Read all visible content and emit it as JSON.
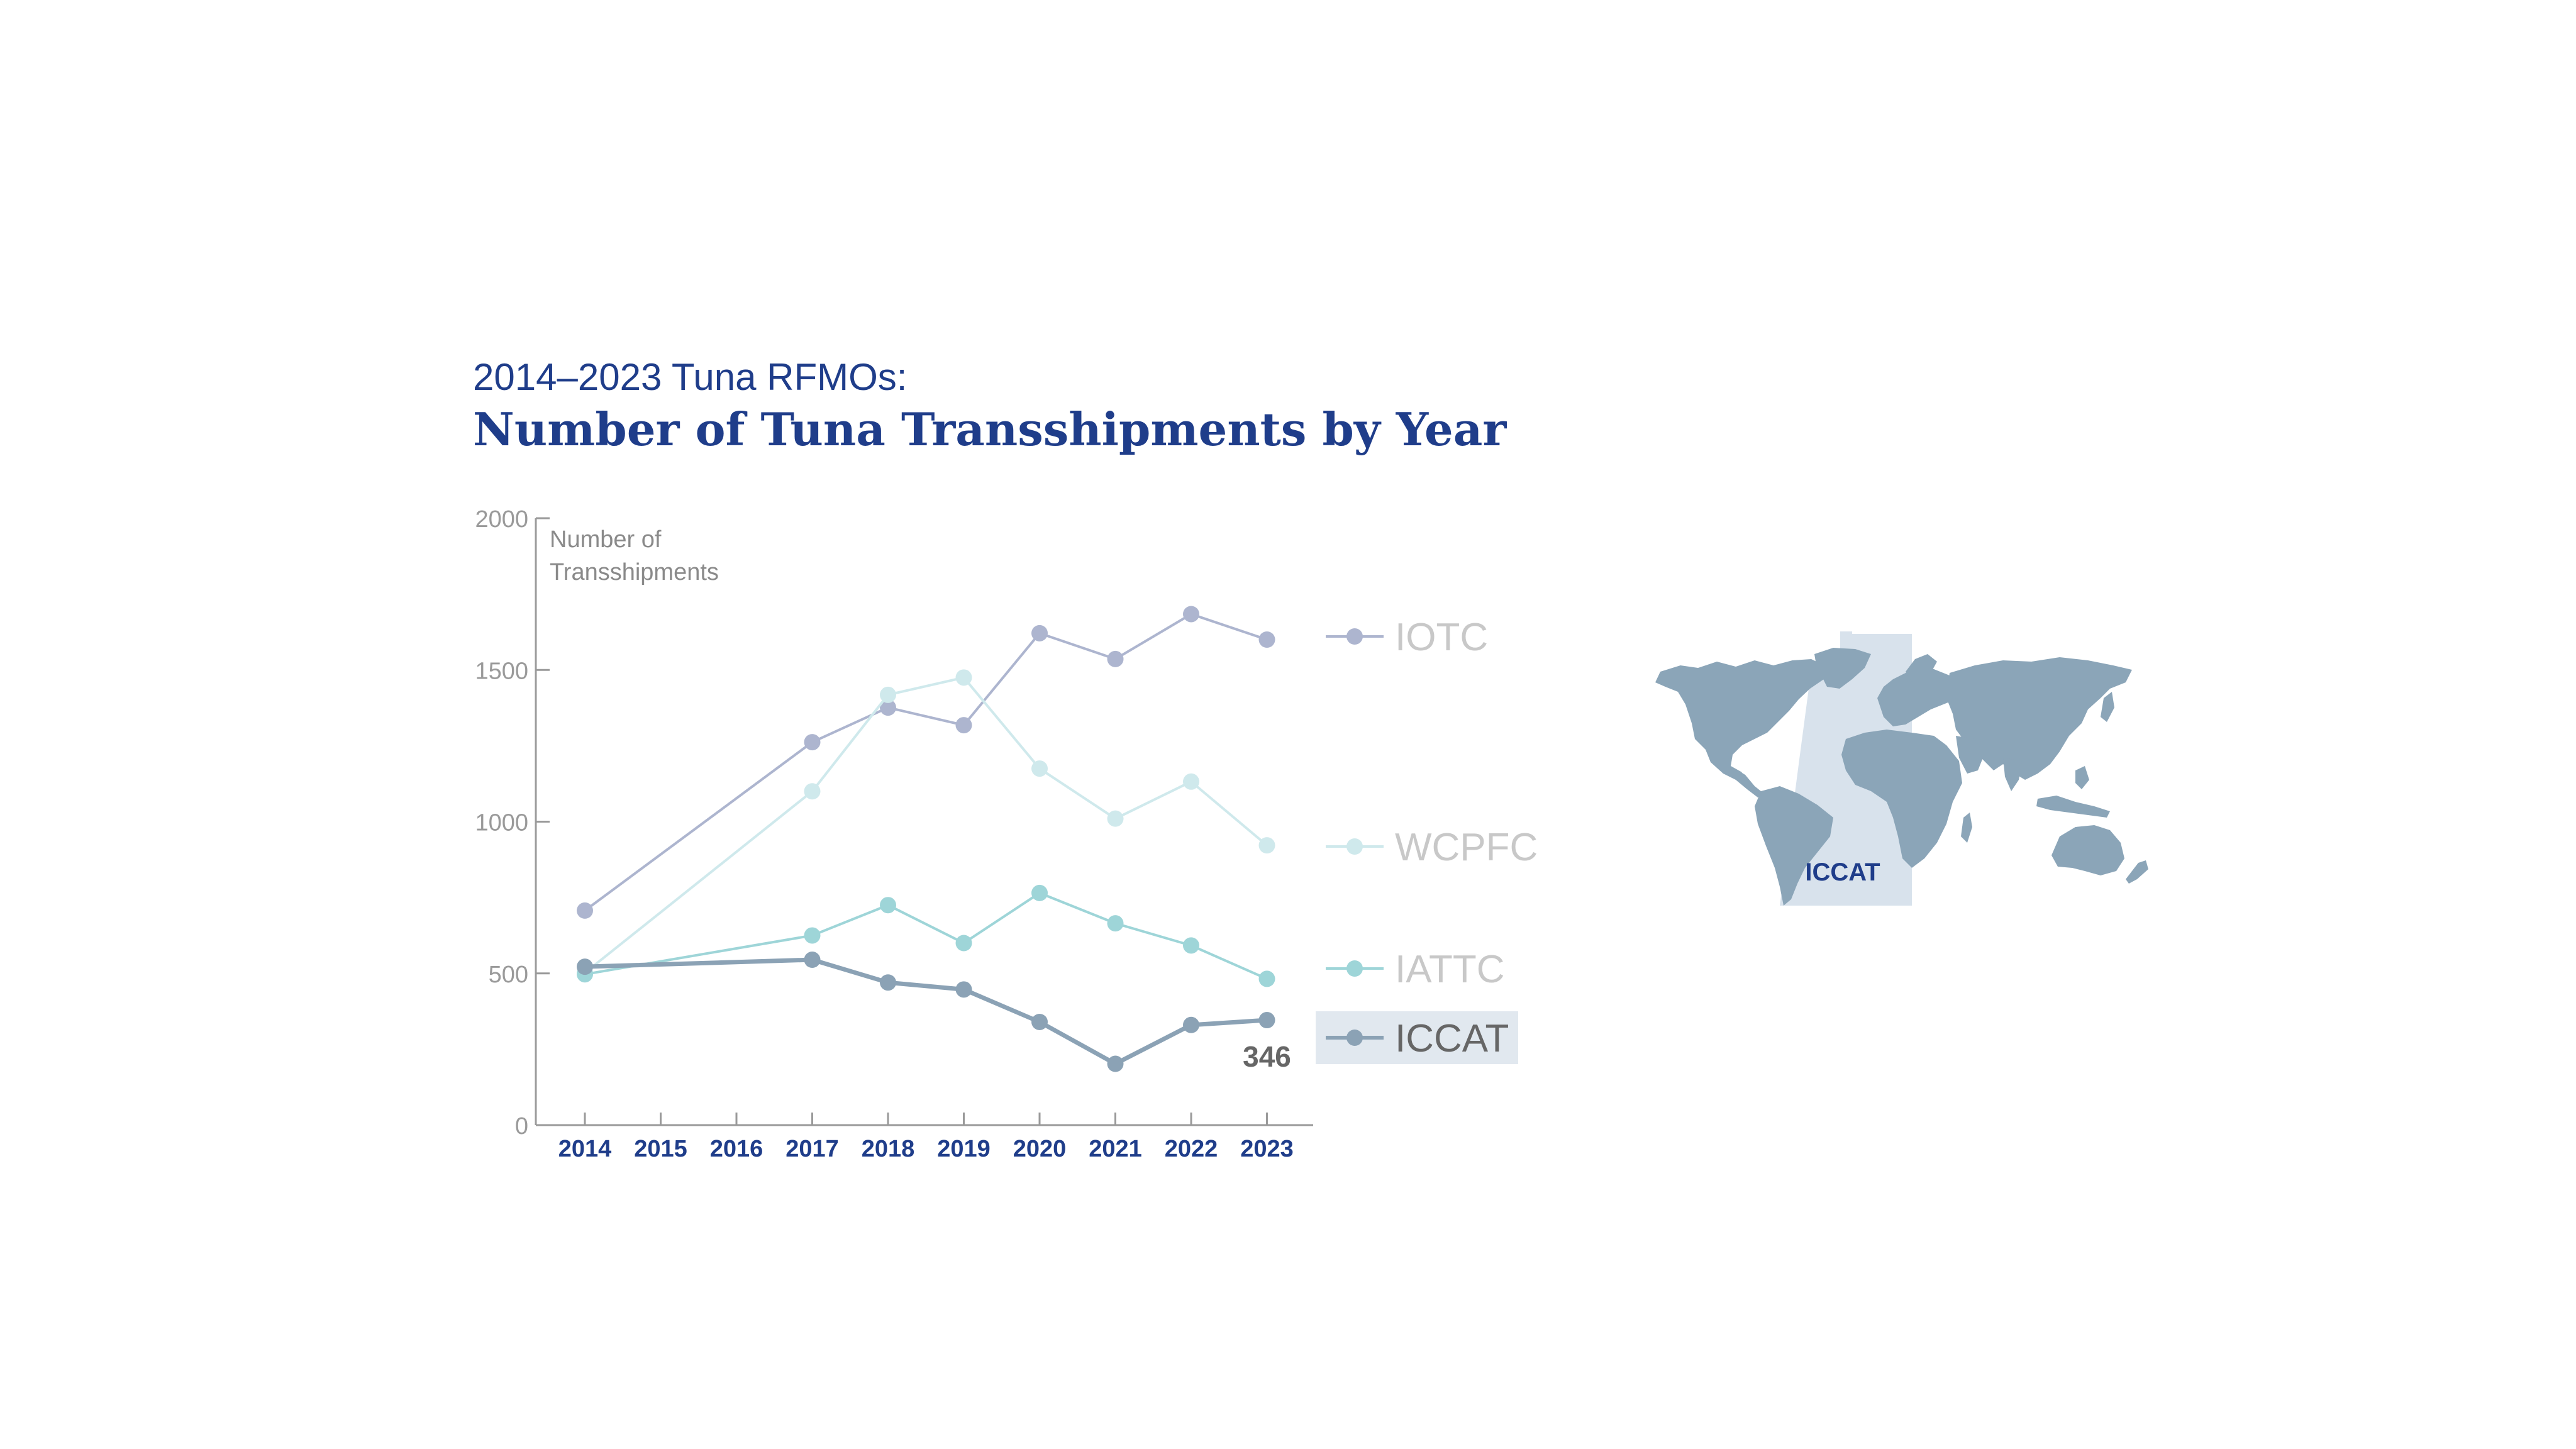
{
  "colors": {
    "title": "#1f3d8a",
    "axis": "#9a9a9a",
    "tick_text": "#9a9a9a",
    "year_text": "#1f3d8a",
    "map_land": "#8ba5b8",
    "map_region": "#d8e2ec",
    "highlight_box": "#e1e8ef"
  },
  "chart_data": {
    "type": "line",
    "title": "2014–2023 Tuna RFMOs:",
    "subtitle": "Number of Tuna Transshipments by Year",
    "ylabel": "Number of Transshipments",
    "ylabel_lines": [
      "Number of",
      "Transshipments"
    ],
    "xlabel": "",
    "ylim": [
      0,
      2000
    ],
    "yticks": [
      "0",
      "500",
      "1000",
      "1500",
      "2000"
    ],
    "categories": [
      "2014",
      "2015",
      "2016",
      "2017",
      "2018",
      "2019",
      "2020",
      "2021",
      "2022",
      "2023"
    ],
    "series": [
      {
        "name": "IOTC",
        "color": "#adb5cf",
        "values": [
          707,
          null,
          null,
          1262,
          1376,
          1318,
          1621,
          1536,
          1684,
          1600
        ]
      },
      {
        "name": "WCPFC",
        "color": "#cfe9ec",
        "values": [
          502,
          null,
          null,
          1100,
          1418,
          1475,
          1175,
          1010,
          1132,
          922
        ]
      },
      {
        "name": "IATTC",
        "color": "#9ed5d8",
        "values": [
          497,
          null,
          null,
          625,
          725,
          600,
          765,
          665,
          592,
          482
        ]
      },
      {
        "name": "ICCAT",
        "color": "#8ba2b5",
        "values": [
          522,
          null,
          null,
          545,
          470,
          447,
          340,
          202,
          330,
          346
        ]
      }
    ],
    "highlighted_series": "ICCAT",
    "annotation": "346",
    "legend_position": "right",
    "grid": false
  },
  "map": {
    "region_label": "ICCAT"
  }
}
